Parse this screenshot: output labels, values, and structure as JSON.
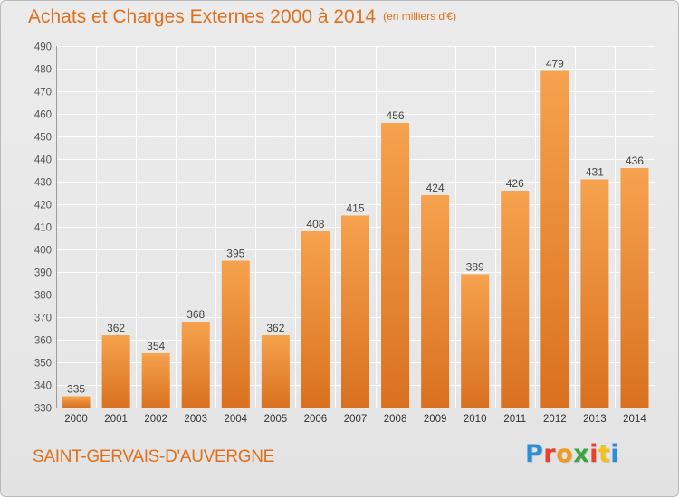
{
  "header": {
    "title": "Achats et Charges Externes 2000 à 2014",
    "subtitle": "(en milliers d'€)"
  },
  "footer": {
    "location": "SAINT-GERVAIS-D'AUVERGNE"
  },
  "logo": {
    "text": "Proxiti",
    "colors": [
      "#2a8fd6",
      "#e8412c",
      "#f39a1e",
      "#3ea442",
      "#e8412c",
      "#f2c21a",
      "#2a8fd6"
    ]
  },
  "colors": {
    "bar_top": "#f6a24e",
    "bar_bottom": "#d9711f",
    "text_accent": "#e0701c",
    "grid": "#ffffff"
  },
  "chart_data": {
    "type": "bar",
    "categories": [
      "2000",
      "2001",
      "2002",
      "2003",
      "2004",
      "2005",
      "2006",
      "2007",
      "2008",
      "2009",
      "2010",
      "2011",
      "2012",
      "2013",
      "2014"
    ],
    "values": [
      335,
      362,
      354,
      368,
      395,
      362,
      408,
      415,
      456,
      424,
      389,
      426,
      479,
      431,
      436
    ],
    "ylim": [
      330,
      490
    ],
    "yticks": [
      330,
      340,
      350,
      360,
      370,
      380,
      390,
      400,
      410,
      420,
      430,
      440,
      450,
      460,
      470,
      480,
      490
    ],
    "grid": true,
    "data_labels": true
  }
}
